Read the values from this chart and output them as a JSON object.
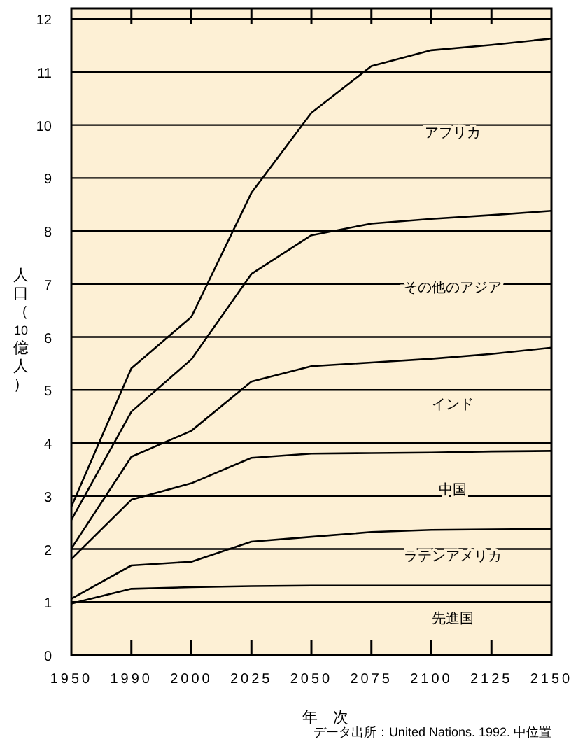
{
  "chart_data": {
    "type": "line",
    "xlabel": "年　次",
    "ylabel": "人口（10億人）",
    "categories": [
      "1950",
      "1990",
      "2000",
      "2025",
      "2050",
      "2075",
      "2100",
      "2125",
      "2150"
    ],
    "ylim": [
      0,
      12.2
    ],
    "yticks": [
      0,
      1,
      2,
      3,
      4,
      5,
      6,
      7,
      8,
      9,
      10,
      11,
      12
    ],
    "grid": "y",
    "series": [
      {
        "color": "#000000",
        "values": [
          0.97,
          1.25,
          1.28,
          1.3,
          1.31,
          1.31,
          1.31,
          1.31,
          1.31
        ]
      },
      {
        "color": "#000000",
        "values": [
          1.06,
          1.69,
          1.76,
          2.14,
          2.23,
          2.32,
          2.36,
          2.37,
          2.38
        ]
      },
      {
        "color": "#000000",
        "values": [
          1.81,
          2.93,
          3.24,
          3.72,
          3.8,
          3.81,
          3.82,
          3.84,
          3.85
        ]
      },
      {
        "color": "#000000",
        "values": [
          2.01,
          3.74,
          4.23,
          5.16,
          5.45,
          5.52,
          5.59,
          5.68,
          5.8
        ]
      },
      {
        "color": "#000000",
        "values": [
          2.55,
          4.59,
          5.58,
          7.19,
          7.92,
          8.14,
          8.23,
          8.3,
          8.38
        ]
      },
      {
        "color": "#000000",
        "values": [
          2.8,
          5.41,
          6.38,
          8.72,
          10.23,
          11.11,
          11.41,
          11.51,
          11.63
        ]
      }
    ],
    "annotations": [
      "アフリカ",
      "その他のアジア",
      "インド",
      "中国",
      "ラテンアメリカ",
      "先進国",
      "データ出所：United Nations. 1992. 中位置"
    ]
  }
}
